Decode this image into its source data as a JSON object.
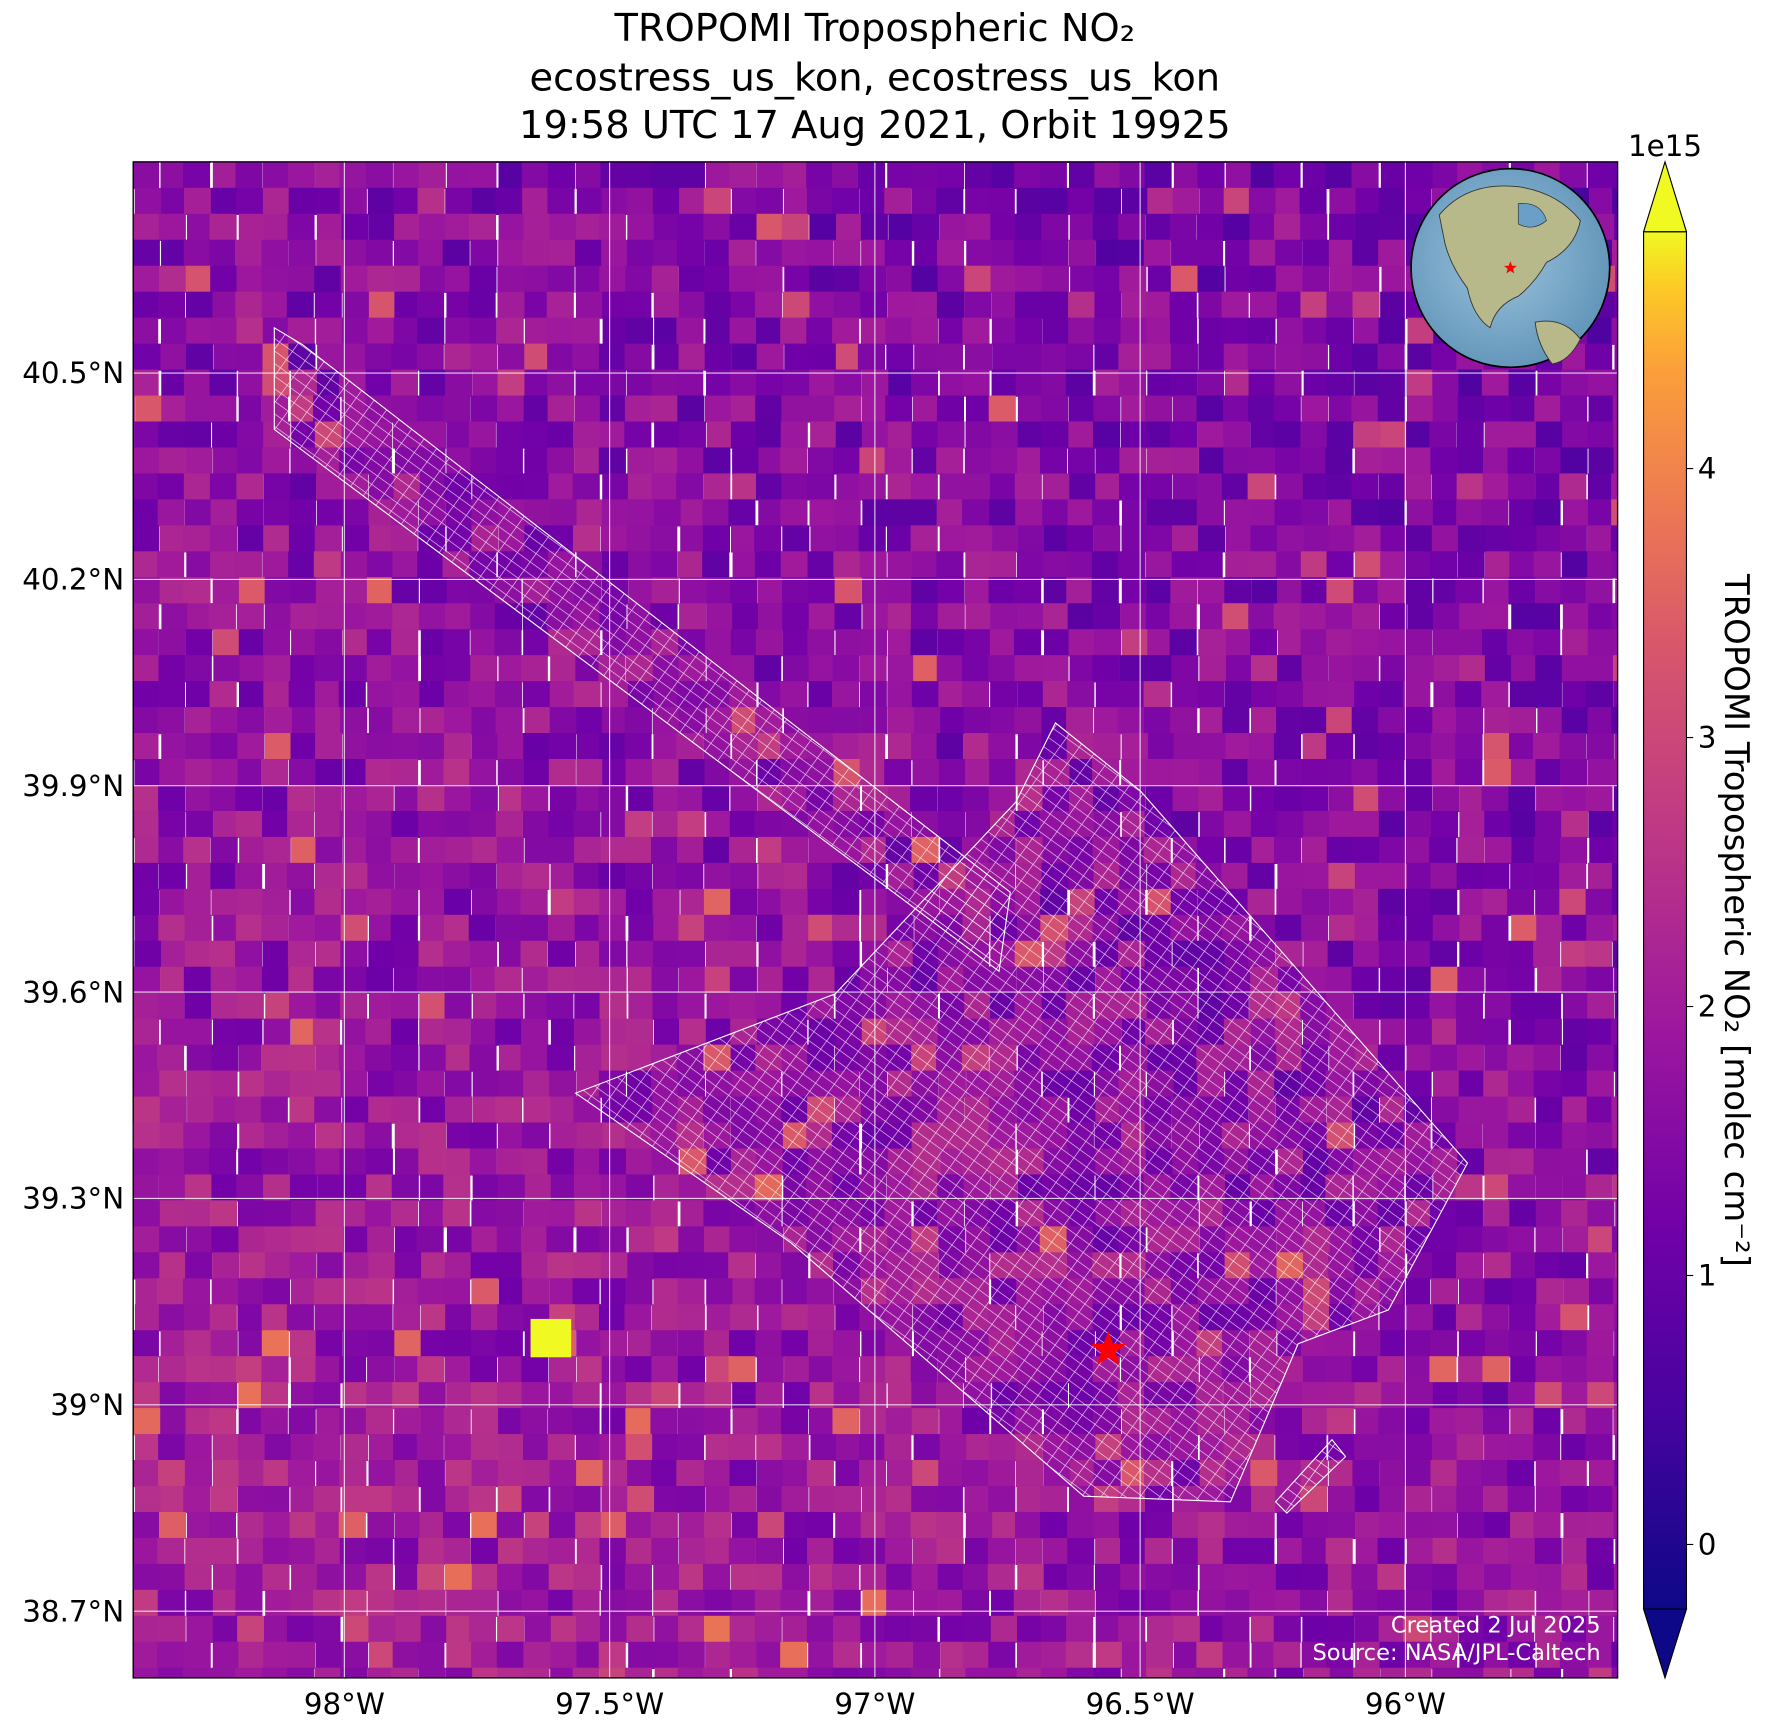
{
  "map": {
    "title": [
      "TROPOMI Tropospheric NO₂",
      "ecostress_us_kon, ecostress_us_kon",
      "19:58 UTC 17 Aug 2021, Orbit 19925"
    ],
    "xlim": [
      -98.398,
      -95.6
    ],
    "ylim": [
      38.603,
      40.807
    ],
    "lon_ticks": [
      {
        "value": -98,
        "label": "98°W"
      },
      {
        "value": -97.5,
        "label": "97.5°W"
      },
      {
        "value": -97,
        "label": "97°W"
      },
      {
        "value": -96.5,
        "label": "96.5°W"
      },
      {
        "value": -96,
        "label": "96°W"
      }
    ],
    "lat_ticks": [
      {
        "value": 38.7,
        "label": "38.7°N"
      },
      {
        "value": 39,
        "label": "39°N"
      },
      {
        "value": 39.3,
        "label": "39.3°N"
      },
      {
        "value": 39.6,
        "label": "39.6°N"
      },
      {
        "value": 39.9,
        "label": "39.9°N"
      },
      {
        "value": 40.2,
        "label": "40.2°N"
      },
      {
        "value": 40.5,
        "label": "40.5°N"
      }
    ],
    "grid": true,
    "site": {
      "lon": -96.56,
      "lat": 39.08,
      "color": "#ff0000"
    },
    "colorbar": {
      "label": "TROPOMI Tropospheric NO₂ [molec cm⁻²]",
      "offset_label": "1e15",
      "lim": [
        -0.24,
        4.88
      ],
      "ticks": [
        0,
        1,
        2,
        3,
        4
      ],
      "colormap": "plasma"
    },
    "credits": [
      "Created 2 Jul 2025",
      "Source: NASA/JPL-Caltech"
    ]
  }
}
